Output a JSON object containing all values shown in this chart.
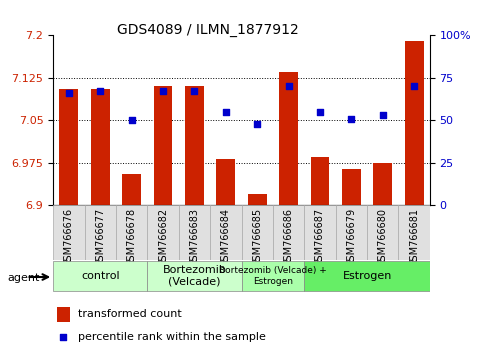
{
  "title": "GDS4089 / ILMN_1877912",
  "samples": [
    "GSM766676",
    "GSM766677",
    "GSM766678",
    "GSM766682",
    "GSM766683",
    "GSM766684",
    "GSM766685",
    "GSM766686",
    "GSM766687",
    "GSM766679",
    "GSM766680",
    "GSM766681"
  ],
  "transformed_count": [
    7.105,
    7.105,
    6.955,
    7.11,
    7.11,
    6.982,
    6.92,
    7.135,
    6.985,
    6.965,
    6.975,
    7.19
  ],
  "percentile_rank": [
    66,
    67,
    50,
    67,
    67,
    55,
    48,
    70,
    55,
    51,
    53,
    70
  ],
  "groups": [
    {
      "label": "control",
      "start": 0,
      "end": 3,
      "color": "#ccffcc"
    },
    {
      "label": "Bortezomib\n(Velcade)",
      "start": 3,
      "end": 6,
      "color": "#ccffcc"
    },
    {
      "label": "Bortezomib (Velcade) +\nEstrogen",
      "start": 6,
      "end": 8,
      "color": "#aaffaa"
    },
    {
      "label": "Estrogen",
      "start": 8,
      "end": 12,
      "color": "#66ee66"
    }
  ],
  "ylim_left": [
    6.9,
    7.2
  ],
  "ylim_right": [
    0,
    100
  ],
  "yticks_left": [
    6.9,
    6.975,
    7.05,
    7.125,
    7.2
  ],
  "yticks_right": [
    0,
    25,
    50,
    75,
    100
  ],
  "bar_color": "#cc2200",
  "dot_color": "#0000cc",
  "bar_bottom": 6.9,
  "legend_tc": "transformed count",
  "legend_pr": "percentile rank within the sample",
  "agent_label": "agent"
}
